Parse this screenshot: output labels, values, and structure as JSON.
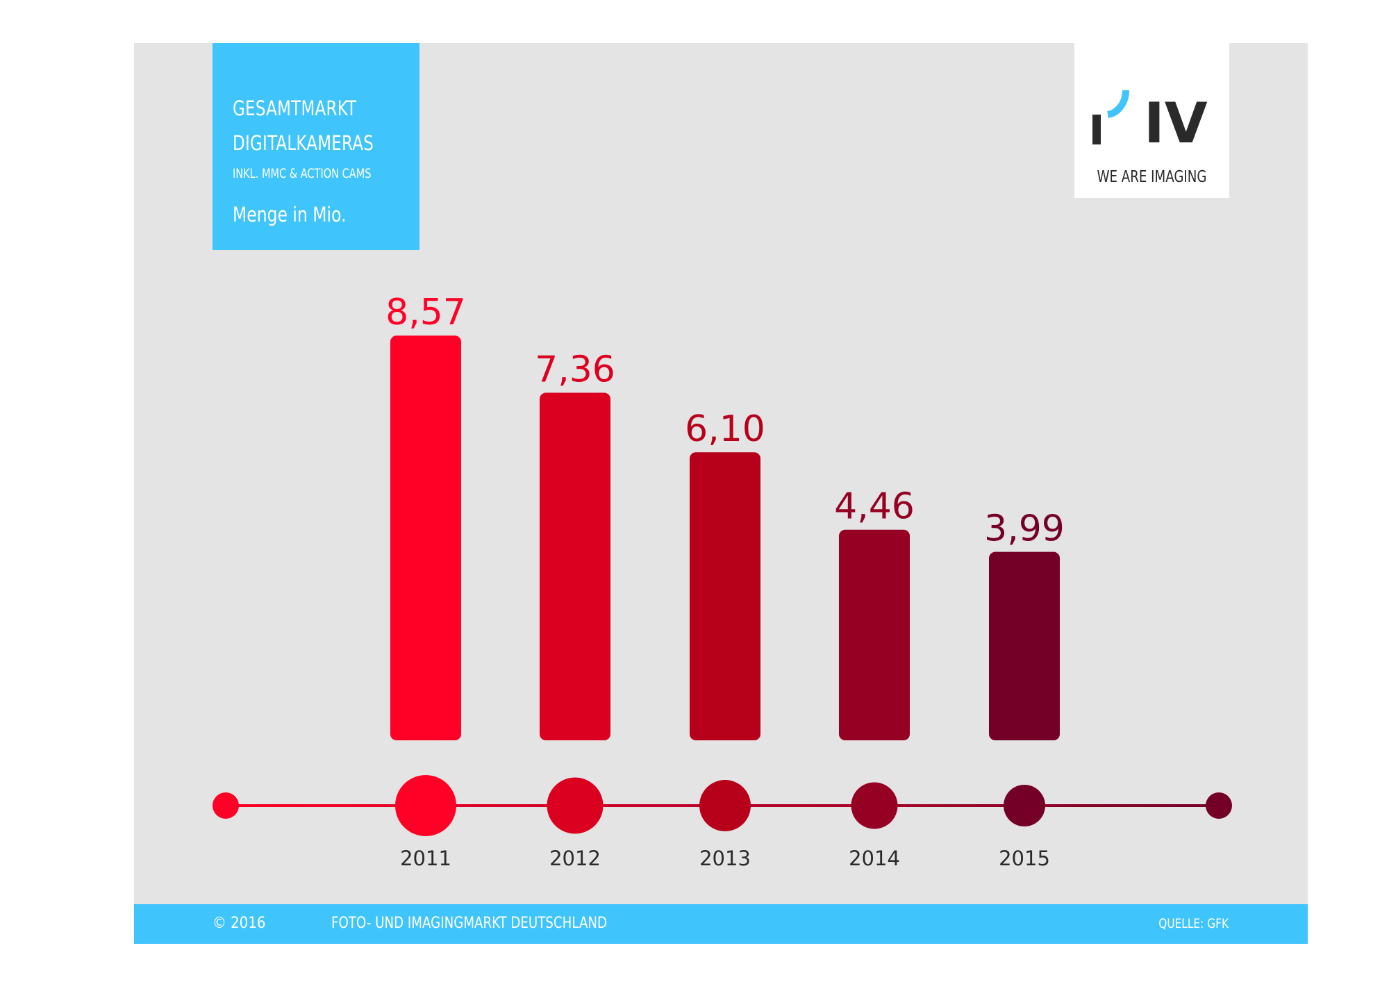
{
  "header": {
    "line1": "GESAMTMARKT",
    "line2": "DIGITALKAMERAS",
    "line3": "INKL. MMC & ACTION CAMS",
    "unit": "Menge in Mio."
  },
  "logo": {
    "text": "IV",
    "tagline": "WE ARE IMAGING"
  },
  "footer": {
    "copyright": "© 2016",
    "title": "FOTO- UND IMAGINGMARKT DEUTSCHLAND",
    "source": "QUELLE: GFK"
  },
  "colors": {
    "accent_blue": "#40c4fc",
    "panel_gray": "#e4e4e4",
    "bars": [
      "#ff0026",
      "#dc0020",
      "#b7001a",
      "#960022",
      "#750027"
    ]
  },
  "chart_data": {
    "type": "bar",
    "title": "Gesamtmarkt Digitalkameras inkl. MMC & Action Cams",
    "ylabel": "Menge in Mio.",
    "xlabel": "",
    "categories": [
      "2011",
      "2012",
      "2013",
      "2014",
      "2015"
    ],
    "values": [
      8.57,
      7.36,
      6.1,
      4.46,
      3.99
    ],
    "value_labels": [
      "8,57",
      "7,36",
      "6,10",
      "4,46",
      "3,99"
    ],
    "ylim": [
      0,
      10
    ],
    "grid": false,
    "legend": "none"
  }
}
